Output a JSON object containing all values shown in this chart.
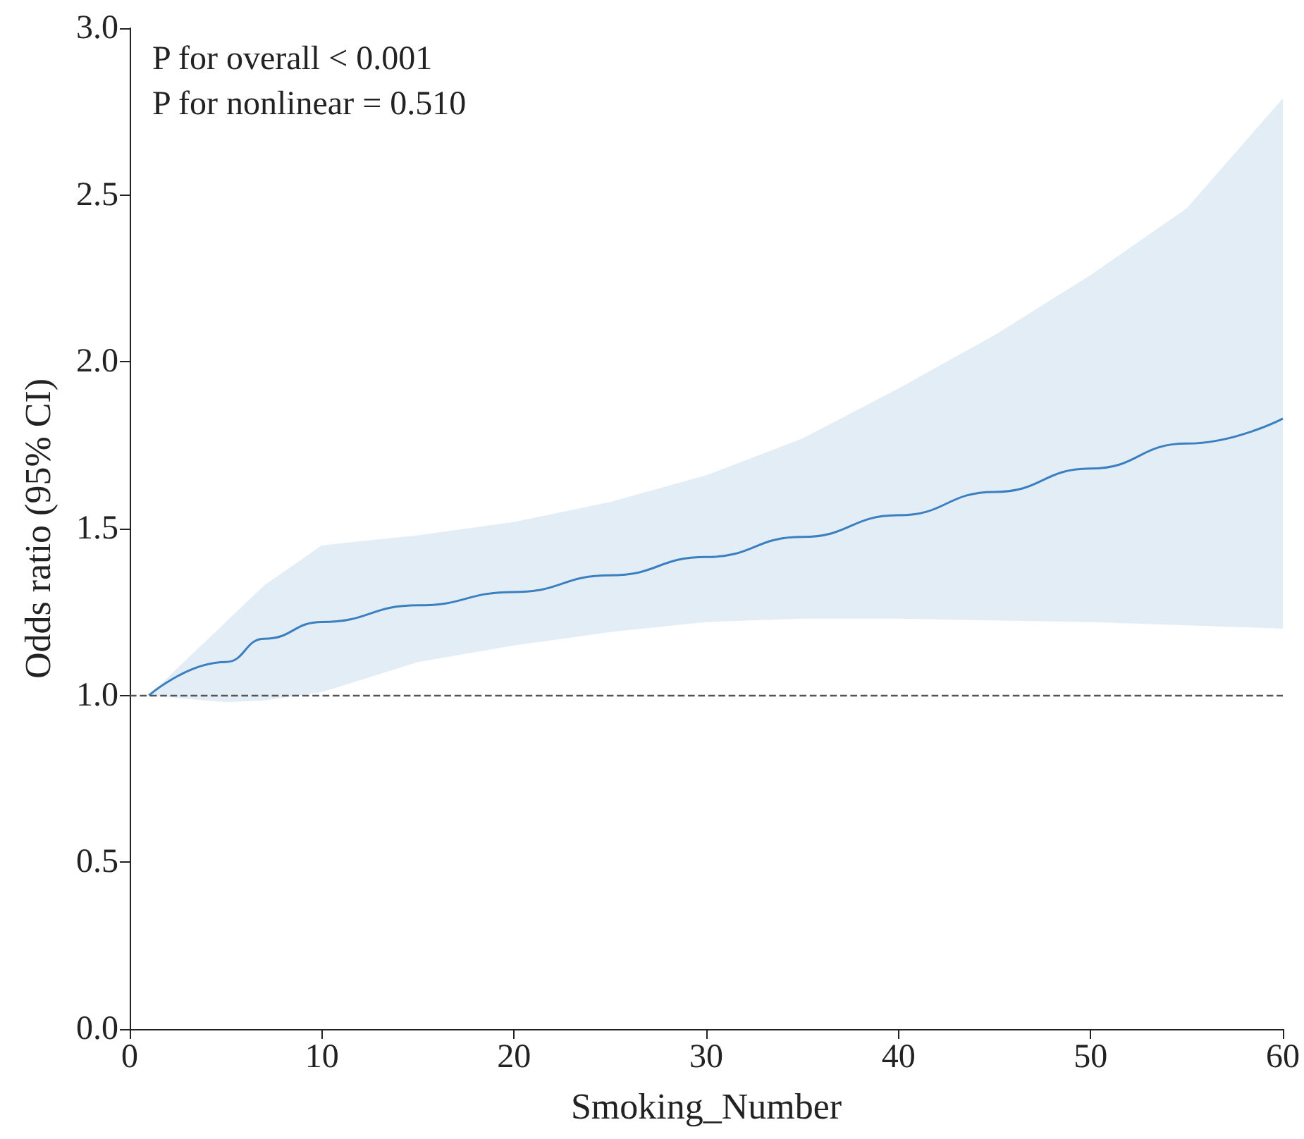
{
  "chart_data": {
    "type": "line",
    "xlabel": "Smoking_Number",
    "ylabel": "Odds ratio (95% CI)",
    "annotations": [
      "P for overall < 0.001",
      "P for nonlinear = 0.510"
    ],
    "xlim": [
      0,
      60
    ],
    "xticks": [
      0,
      10,
      20,
      30,
      40,
      50,
      60
    ],
    "ylim": [
      0,
      3
    ],
    "yticks": [
      {
        "value": 0,
        "label": "0.0"
      },
      {
        "value": 0.5,
        "label": "0.5"
      },
      {
        "value": 1,
        "label": "1.0"
      },
      {
        "value": 1.5,
        "label": "1.5"
      },
      {
        "value": 2,
        "label": "2.0"
      },
      {
        "value": 2.5,
        "label": "2.5"
      },
      {
        "value": 3,
        "label": "3.0"
      }
    ],
    "grid": false,
    "marker": "none",
    "line_style": "solid",
    "series": [
      {
        "color": "#3a7fc0",
        "x": [
          1,
          5,
          7,
          10,
          15,
          20,
          25,
          30,
          35,
          40,
          45,
          50,
          55,
          60
        ],
        "values": [
          1.0,
          1.1,
          1.17,
          1.22,
          1.27,
          1.31,
          1.36,
          1.415,
          1.475,
          1.54,
          1.61,
          1.68,
          1.755,
          1.83
        ],
        "lower": [
          1.0,
          0.98,
          0.985,
          1.01,
          1.1,
          1.15,
          1.19,
          1.22,
          1.23,
          1.23,
          1.225,
          1.22,
          1.21,
          1.2
        ],
        "upper": [
          1.0,
          1.22,
          1.33,
          1.45,
          1.48,
          1.52,
          1.58,
          1.66,
          1.77,
          1.92,
          2.08,
          2.26,
          2.46,
          2.79
        ]
      }
    ],
    "ref_lines": [
      {
        "axis": "y",
        "value": 1,
        "color": "#555555",
        "line_style": "dashed"
      }
    ]
  }
}
